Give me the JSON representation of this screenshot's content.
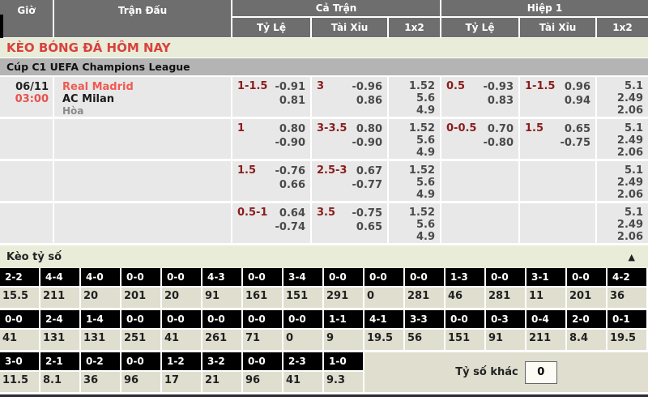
{
  "header": {
    "time_col": "Giờ",
    "match_col": "Trận Đấu",
    "groups": [
      {
        "label": "Cả Trận"
      },
      {
        "label": "Hiệp 1"
      }
    ],
    "sub_cols": [
      "Tỷ Lệ",
      "Tài Xỉu",
      "1x2",
      "Tỷ Lệ",
      "Tài Xỉu",
      "1x2"
    ]
  },
  "banner_title": "KÈO BÓNG ĐÁ HÔM NAY",
  "league_title": "Cúp C1 UEFA Champions League",
  "match": {
    "date": "06/11",
    "time": "03:00",
    "home": "Real Madrid",
    "away": "AC Milan",
    "draw": "Hòa"
  },
  "odds_rows": [
    {
      "ft_hdp": {
        "line": "1-1.5",
        "o1": "-0.91",
        "o2": "0.81"
      },
      "ft_ou": {
        "line": "3",
        "o1": "-0.96",
        "o2": "0.86"
      },
      "ft_1x2": [
        "1.52",
        "5.6",
        "4.9"
      ],
      "h1_hdp": {
        "line": "0.5",
        "o1": "-0.93",
        "o2": "0.83"
      },
      "h1_ou": {
        "line": "1-1.5",
        "o1": "0.96",
        "o2": "0.94"
      },
      "h1_1x2": [
        "5.1",
        "2.49",
        "2.06"
      ]
    },
    {
      "ft_hdp": {
        "line": "1",
        "o1": "0.80",
        "o2": "-0.90"
      },
      "ft_ou": {
        "line": "3-3.5",
        "o1": "0.80",
        "o2": "-0.90"
      },
      "ft_1x2": [
        "1.52",
        "5.6",
        "4.9"
      ],
      "h1_hdp": {
        "line": "0-0.5",
        "o1": "0.70",
        "o2": "-0.80"
      },
      "h1_ou": {
        "line": "1.5",
        "o1": "0.65",
        "o2": "-0.75"
      },
      "h1_1x2": [
        "5.1",
        "2.49",
        "2.06"
      ]
    },
    {
      "ft_hdp": {
        "line": "1.5",
        "o1": "-0.76",
        "o2": "0.66"
      },
      "ft_ou": {
        "line": "2.5-3",
        "o1": "0.67",
        "o2": "-0.77"
      },
      "ft_1x2": [
        "1.52",
        "5.6",
        "4.9"
      ],
      "h1_hdp": {
        "line": "",
        "o1": "",
        "o2": ""
      },
      "h1_ou": {
        "line": "",
        "o1": "",
        "o2": ""
      },
      "h1_1x2": [
        "5.1",
        "2.49",
        "2.06"
      ]
    },
    {
      "ft_hdp": {
        "line": "0.5-1",
        "o1": "0.64",
        "o2": "-0.74"
      },
      "ft_ou": {
        "line": "3.5",
        "o1": "-0.75",
        "o2": "0.65"
      },
      "ft_1x2": [
        "1.52",
        "5.6",
        "4.9"
      ],
      "h1_hdp": {
        "line": "",
        "o1": "",
        "o2": ""
      },
      "h1_ou": {
        "line": "",
        "o1": "",
        "o2": ""
      },
      "h1_1x2": [
        "5.1",
        "2.49",
        "2.06"
      ]
    }
  ],
  "score_board": {
    "title": "Kèo tỷ số",
    "collapse_icon": "▲",
    "other_label": "Tỷ số khác",
    "other_value": "0",
    "rows": [
      {
        "cells": [
          {
            "score": "2-2",
            "odds": "15.5"
          },
          {
            "score": "4-4",
            "odds": "211"
          },
          {
            "score": "4-0",
            "odds": "20"
          },
          {
            "score": "0-0",
            "odds": "201"
          },
          {
            "score": "0-0",
            "odds": "20"
          },
          {
            "score": "4-3",
            "odds": "91"
          },
          {
            "score": "0-0",
            "odds": "161"
          },
          {
            "score": "3-4",
            "odds": "151"
          },
          {
            "score": "0-0",
            "odds": "291"
          },
          {
            "score": "0-0",
            "odds": "0"
          },
          {
            "score": "0-0",
            "odds": "281"
          },
          {
            "score": "1-3",
            "odds": "46"
          },
          {
            "score": "0-0",
            "odds": "281"
          },
          {
            "score": "3-1",
            "odds": "11"
          },
          {
            "score": "0-0",
            "odds": "201"
          },
          {
            "score": "4-2",
            "odds": "36"
          }
        ]
      },
      {
        "cells": [
          {
            "score": "0-0",
            "odds": "41"
          },
          {
            "score": "2-4",
            "odds": "131"
          },
          {
            "score": "1-4",
            "odds": "131"
          },
          {
            "score": "0-0",
            "odds": "251"
          },
          {
            "score": "0-0",
            "odds": "41"
          },
          {
            "score": "0-0",
            "odds": "261"
          },
          {
            "score": "0-0",
            "odds": "71"
          },
          {
            "score": "0-0",
            "odds": "0"
          },
          {
            "score": "1-1",
            "odds": "9"
          },
          {
            "score": "4-1",
            "odds": "19.5"
          },
          {
            "score": "3-3",
            "odds": "56"
          },
          {
            "score": "0-0",
            "odds": "151"
          },
          {
            "score": "0-3",
            "odds": "91"
          },
          {
            "score": "0-4",
            "odds": "211"
          },
          {
            "score": "2-0",
            "odds": "8.4"
          },
          {
            "score": "0-1",
            "odds": "19.5"
          }
        ]
      },
      {
        "has_other": true,
        "cells": [
          {
            "score": "3-0",
            "odds": "11.5"
          },
          {
            "score": "2-1",
            "odds": "8.1"
          },
          {
            "score": "0-2",
            "odds": "36"
          },
          {
            "score": "0-0",
            "odds": "96"
          },
          {
            "score": "1-2",
            "odds": "17"
          },
          {
            "score": "3-2",
            "odds": "21"
          },
          {
            "score": "0-0",
            "odds": "96"
          },
          {
            "score": "2-3",
            "odds": "41"
          },
          {
            "score": "1-0",
            "odds": "9.3"
          }
        ]
      }
    ]
  },
  "colors": {
    "header_gray": "#6e6e6e",
    "band_green": "#e9ecd8",
    "league_gray": "#b4b4b4",
    "row_gray": "#e8e8e8",
    "banner_red": "#d9423d",
    "home_team_red": "#ef5a52",
    "line_maroon": "#8b1c1c",
    "score_cell_black": "#000000",
    "score_value_bg": "#dfdecf"
  }
}
